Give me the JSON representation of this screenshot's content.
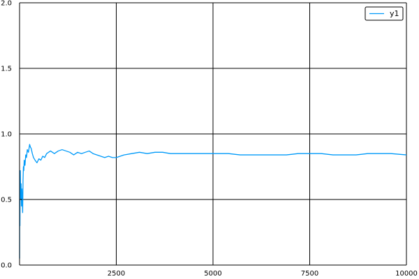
{
  "chart_data": {
    "type": "line",
    "title": "",
    "xlabel": "",
    "ylabel": "",
    "xlim": [
      0,
      10000
    ],
    "ylim": [
      0,
      2
    ],
    "xticks": [
      {
        "value": 2500,
        "label": "2500"
      },
      {
        "value": 5000,
        "label": "5000"
      },
      {
        "value": 7500,
        "label": "7500"
      },
      {
        "value": 10000,
        "label": "10000"
      }
    ],
    "yticks": [
      {
        "value": 0,
        "label": "0.0"
      },
      {
        "value": 0.5,
        "label": "0.5"
      },
      {
        "value": 1,
        "label": "1.0"
      },
      {
        "value": 1.5,
        "label": "1.5"
      },
      {
        "value": 2,
        "label": "2.0"
      }
    ],
    "grid": true,
    "legend_position": "top-right",
    "series": [
      {
        "name": "y1",
        "color": "#009af9",
        "x": [
          1,
          5,
          10,
          15,
          20,
          30,
          40,
          50,
          60,
          70,
          80,
          90,
          100,
          110,
          120,
          140,
          160,
          180,
          200,
          230,
          260,
          280,
          300,
          330,
          360,
          400,
          450,
          500,
          550,
          600,
          650,
          700,
          800,
          900,
          1000,
          1100,
          1200,
          1300,
          1400,
          1500,
          1600,
          1700,
          1800,
          1900,
          2000,
          2100,
          2200,
          2300,
          2400,
          2500,
          2700,
          2900,
          3100,
          3300,
          3500,
          3700,
          3900,
          4200,
          4500,
          4800,
          5100,
          5400,
          5700,
          6000,
          6300,
          6600,
          6900,
          7200,
          7500,
          7800,
          8100,
          8400,
          8700,
          9000,
          9300,
          9600,
          10000
        ],
        "values": [
          0.05,
          0.55,
          0.3,
          0.6,
          0.72,
          0.5,
          0.62,
          0.45,
          0.58,
          0.48,
          0.4,
          0.65,
          0.75,
          0.72,
          0.8,
          0.76,
          0.84,
          0.82,
          0.88,
          0.86,
          0.92,
          0.9,
          0.89,
          0.85,
          0.82,
          0.8,
          0.78,
          0.81,
          0.8,
          0.83,
          0.82,
          0.85,
          0.87,
          0.85,
          0.87,
          0.88,
          0.87,
          0.86,
          0.84,
          0.86,
          0.85,
          0.86,
          0.87,
          0.85,
          0.84,
          0.83,
          0.82,
          0.83,
          0.82,
          0.82,
          0.84,
          0.85,
          0.86,
          0.85,
          0.86,
          0.86,
          0.85,
          0.85,
          0.85,
          0.85,
          0.85,
          0.85,
          0.84,
          0.84,
          0.84,
          0.84,
          0.84,
          0.85,
          0.85,
          0.85,
          0.84,
          0.84,
          0.84,
          0.85,
          0.85,
          0.85,
          0.84
        ]
      }
    ]
  }
}
